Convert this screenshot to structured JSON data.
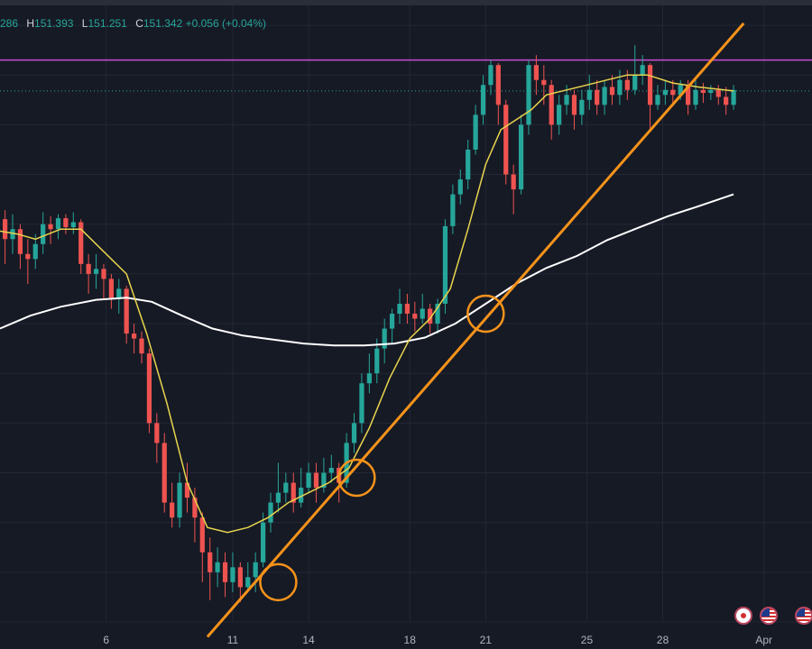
{
  "ohlc": {
    "open_partial": "286",
    "high_label": "H",
    "high": "151.393",
    "low_label": "L",
    "low": "151.251",
    "close_label": "C",
    "close": "151.342",
    "change": "+0.056",
    "change_pct": "(+0.04%)"
  },
  "colors": {
    "background": "#161a25",
    "grid": "#232734",
    "up": "#26a69a",
    "down": "#ef5350",
    "ma_fast": "#e8d44d",
    "ma_slow": "#ffffff",
    "trendline": "#f7931a",
    "resistance": "#c850d0",
    "price_line": "#26a69a",
    "axis_text": "#b2b5be"
  },
  "x_axis": {
    "labels": [
      {
        "text": "6",
        "x": 6
      },
      {
        "text": "11",
        "x": 11
      },
      {
        "text": "14",
        "x": 14
      },
      {
        "text": "18",
        "x": 18
      },
      {
        "text": "21",
        "x": 21
      },
      {
        "text": "25",
        "x": 25
      },
      {
        "text": "28",
        "x": 28
      },
      {
        "text": "Apr",
        "x": 32
      }
    ]
  },
  "event_flags": [
    {
      "type": "jp",
      "icon": "japan-flag-icon"
    },
    {
      "type": "us",
      "icon": "us-flag-icon"
    },
    {
      "type": "us",
      "icon": "us-flag-icon"
    }
  ],
  "chart_data": {
    "type": "candlestick",
    "xlim": [
      1.8,
      33.9
    ],
    "ylim": [
      146.0,
      152.2
    ],
    "resistance_level": 151.65,
    "last_price": 151.34,
    "candles": [
      [
        2.0,
        150.05,
        149.85,
        150.14,
        149.6
      ],
      [
        2.3,
        149.85,
        149.95,
        150.1,
        149.7
      ],
      [
        2.6,
        149.95,
        149.7,
        150.0,
        149.55
      ],
      [
        2.9,
        149.7,
        149.65,
        149.85,
        149.4
      ],
      [
        3.2,
        149.65,
        149.8,
        149.9,
        149.55
      ],
      [
        3.5,
        149.8,
        150.0,
        150.12,
        149.7
      ],
      [
        3.8,
        150.0,
        149.95,
        150.08,
        149.8
      ],
      [
        4.1,
        149.95,
        150.06,
        150.1,
        149.85
      ],
      [
        4.4,
        150.06,
        149.97,
        150.1,
        149.9
      ],
      [
        4.7,
        149.97,
        150.02,
        150.12,
        149.9
      ],
      [
        5.0,
        150.02,
        149.6,
        150.05,
        149.5
      ],
      [
        5.3,
        149.6,
        149.5,
        149.7,
        149.3
      ],
      [
        5.6,
        149.5,
        149.55,
        149.7,
        149.35
      ],
      [
        5.9,
        149.55,
        149.45,
        149.6,
        149.25
      ],
      [
        6.2,
        149.45,
        149.25,
        149.5,
        149.15
      ],
      [
        6.5,
        149.25,
        149.35,
        149.45,
        149.1
      ],
      [
        6.8,
        149.35,
        148.9,
        149.38,
        148.8
      ],
      [
        7.1,
        148.9,
        148.85,
        149.0,
        148.7
      ],
      [
        7.4,
        148.85,
        148.7,
        148.92,
        148.6
      ],
      [
        7.7,
        148.7,
        148.0,
        148.75,
        147.9
      ],
      [
        8.0,
        148.0,
        147.8,
        148.1,
        147.6
      ],
      [
        8.3,
        147.8,
        147.2,
        147.9,
        147.1
      ],
      [
        8.6,
        147.2,
        147.05,
        147.4,
        146.95
      ],
      [
        8.9,
        147.05,
        147.4,
        147.5,
        146.95
      ],
      [
        9.2,
        147.4,
        147.25,
        147.6,
        147.1
      ],
      [
        9.5,
        147.25,
        147.05,
        147.35,
        146.8
      ],
      [
        9.8,
        147.05,
        146.7,
        147.1,
        146.4
      ],
      [
        10.1,
        146.7,
        146.5,
        146.85,
        146.22
      ],
      [
        10.4,
        146.5,
        146.6,
        146.75,
        146.35
      ],
      [
        10.7,
        146.6,
        146.4,
        146.7,
        146.25
      ],
      [
        11.0,
        146.4,
        146.55,
        146.7,
        146.3
      ],
      [
        11.3,
        146.55,
        146.35,
        146.6,
        146.2
      ],
      [
        11.6,
        146.35,
        146.45,
        146.6,
        146.3
      ],
      [
        11.9,
        146.45,
        146.6,
        146.7,
        146.3
      ],
      [
        12.2,
        146.6,
        147.0,
        147.1,
        146.55
      ],
      [
        12.5,
        147.0,
        147.2,
        147.3,
        146.9
      ],
      [
        12.8,
        147.2,
        147.3,
        147.6,
        147.1
      ],
      [
        13.1,
        147.3,
        147.4,
        147.5,
        147.2
      ],
      [
        13.4,
        147.4,
        147.2,
        147.5,
        147.1
      ],
      [
        13.7,
        147.2,
        147.35,
        147.55,
        147.15
      ],
      [
        14.0,
        147.35,
        147.5,
        147.6,
        147.3
      ],
      [
        14.3,
        147.5,
        147.35,
        147.6,
        147.2
      ],
      [
        14.6,
        147.35,
        147.5,
        147.65,
        147.3
      ],
      [
        14.9,
        147.5,
        147.55,
        147.68,
        147.4
      ],
      [
        15.2,
        147.55,
        147.4,
        147.6,
        147.2
      ],
      [
        15.5,
        147.4,
        147.8,
        147.9,
        147.35
      ],
      [
        15.8,
        147.8,
        148.0,
        148.1,
        147.7
      ],
      [
        16.1,
        148.0,
        148.4,
        148.5,
        147.9
      ],
      [
        16.4,
        148.4,
        148.5,
        148.7,
        148.3
      ],
      [
        16.7,
        148.5,
        148.75,
        148.85,
        148.4
      ],
      [
        17.0,
        148.75,
        148.95,
        149.05,
        148.6
      ],
      [
        17.3,
        148.95,
        149.1,
        149.15,
        148.8
      ],
      [
        17.6,
        149.1,
        149.2,
        149.35,
        149.0
      ],
      [
        17.9,
        149.2,
        149.1,
        149.3,
        149.0
      ],
      [
        18.2,
        149.1,
        149.05,
        149.22,
        148.92
      ],
      [
        18.5,
        149.05,
        149.15,
        149.3,
        149.0
      ],
      [
        18.8,
        149.15,
        149.0,
        149.2,
        148.9
      ],
      [
        19.1,
        149.0,
        149.2,
        149.25,
        148.9
      ],
      [
        19.4,
        149.2,
        149.98,
        150.05,
        149.1
      ],
      [
        19.7,
        149.98,
        150.3,
        150.4,
        149.9
      ],
      [
        20.0,
        150.3,
        150.45,
        150.55,
        150.2
      ],
      [
        20.3,
        150.45,
        150.75,
        150.85,
        150.35
      ],
      [
        20.6,
        150.75,
        151.1,
        151.2,
        150.7
      ],
      [
        20.9,
        151.1,
        151.4,
        151.5,
        151.0
      ],
      [
        21.2,
        151.4,
        151.6,
        151.65,
        151.3
      ],
      [
        21.5,
        151.6,
        151.2,
        151.62,
        151.0
      ],
      [
        21.8,
        151.2,
        150.5,
        151.25,
        150.4
      ],
      [
        22.1,
        150.5,
        150.35,
        150.6,
        150.1
      ],
      [
        22.4,
        150.35,
        151.0,
        151.1,
        150.3
      ],
      [
        22.7,
        151.0,
        151.6,
        151.65,
        150.9
      ],
      [
        23.0,
        151.6,
        151.45,
        151.7,
        151.3
      ],
      [
        23.3,
        151.45,
        151.4,
        151.6,
        151.2
      ],
      [
        23.6,
        151.4,
        151.0,
        151.45,
        150.85
      ],
      [
        23.9,
        151.0,
        151.2,
        151.3,
        150.9
      ],
      [
        24.2,
        151.2,
        151.3,
        151.4,
        151.1
      ],
      [
        24.5,
        151.3,
        151.1,
        151.35,
        150.95
      ],
      [
        24.8,
        151.1,
        151.25,
        151.35,
        151.0
      ],
      [
        25.1,
        151.25,
        151.35,
        151.5,
        151.15
      ],
      [
        25.4,
        151.35,
        151.2,
        151.45,
        151.1
      ],
      [
        25.7,
        151.2,
        151.38,
        151.45,
        151.1
      ],
      [
        26.0,
        151.38,
        151.3,
        151.5,
        151.2
      ],
      [
        26.3,
        151.3,
        151.45,
        151.55,
        151.2
      ],
      [
        26.6,
        151.45,
        151.35,
        151.55,
        151.25
      ],
      [
        26.9,
        151.35,
        151.5,
        151.8,
        151.3
      ],
      [
        27.2,
        151.5,
        151.6,
        151.7,
        151.4
      ],
      [
        27.5,
        151.6,
        151.2,
        151.62,
        150.95
      ],
      [
        27.8,
        151.2,
        151.3,
        151.4,
        151.15
      ],
      [
        28.1,
        151.3,
        151.35,
        151.45,
        151.2
      ],
      [
        28.4,
        151.35,
        151.3,
        151.45,
        151.2
      ],
      [
        28.7,
        151.3,
        151.4,
        151.45,
        151.25
      ],
      [
        29.0,
        151.4,
        151.2,
        151.45,
        151.1
      ],
      [
        29.3,
        151.2,
        151.35,
        151.45,
        151.15
      ],
      [
        29.6,
        151.35,
        151.32,
        151.42,
        151.22
      ],
      [
        29.9,
        151.32,
        151.35,
        151.4,
        151.25
      ],
      [
        30.2,
        151.35,
        151.28,
        151.4,
        151.2
      ],
      [
        30.5,
        151.28,
        151.2,
        151.38,
        151.1
      ],
      [
        30.8,
        151.2,
        151.35,
        151.4,
        151.15
      ]
    ],
    "ma_fast": [
      [
        1.8,
        149.93
      ],
      [
        2.5,
        149.9
      ],
      [
        3.2,
        149.85
      ],
      [
        4.2,
        149.95
      ],
      [
        5.0,
        149.95
      ],
      [
        5.8,
        149.75
      ],
      [
        6.8,
        149.5
      ],
      [
        7.6,
        148.9
      ],
      [
        8.4,
        148.2
      ],
      [
        9.2,
        147.4
      ],
      [
        10.0,
        146.95
      ],
      [
        10.8,
        146.9
      ],
      [
        11.6,
        146.95
      ],
      [
        12.4,
        147.05
      ],
      [
        13.2,
        147.2
      ],
      [
        14.0,
        147.3
      ],
      [
        14.8,
        147.4
      ],
      [
        15.6,
        147.55
      ],
      [
        16.4,
        147.95
      ],
      [
        17.2,
        148.45
      ],
      [
        18.0,
        148.85
      ],
      [
        18.8,
        149.05
      ],
      [
        19.6,
        149.35
      ],
      [
        20.3,
        149.95
      ],
      [
        21.0,
        150.6
      ],
      [
        21.6,
        150.95
      ],
      [
        22.2,
        151.05
      ],
      [
        22.8,
        151.15
      ],
      [
        23.4,
        151.3
      ],
      [
        24.2,
        151.35
      ],
      [
        25.0,
        151.4
      ],
      [
        25.8,
        151.45
      ],
      [
        26.6,
        151.5
      ],
      [
        27.4,
        151.5
      ],
      [
        28.4,
        151.42
      ],
      [
        29.4,
        151.38
      ],
      [
        30.8,
        151.34
      ]
    ],
    "ma_slow": [
      [
        1.8,
        148.95
      ],
      [
        3.0,
        149.08
      ],
      [
        4.2,
        149.17
      ],
      [
        5.6,
        149.24
      ],
      [
        6.8,
        149.26
      ],
      [
        7.8,
        149.22
      ],
      [
        9.0,
        149.08
      ],
      [
        10.2,
        148.95
      ],
      [
        11.4,
        148.88
      ],
      [
        12.6,
        148.84
      ],
      [
        13.8,
        148.8
      ],
      [
        15.0,
        148.78
      ],
      [
        16.2,
        148.78
      ],
      [
        17.4,
        148.8
      ],
      [
        18.6,
        148.86
      ],
      [
        19.8,
        149.0
      ],
      [
        21.0,
        149.2
      ],
      [
        22.2,
        149.4
      ],
      [
        23.4,
        149.56
      ],
      [
        24.6,
        149.68
      ],
      [
        25.8,
        149.84
      ],
      [
        27.0,
        149.96
      ],
      [
        28.2,
        150.08
      ],
      [
        29.4,
        150.18
      ],
      [
        30.8,
        150.3
      ]
    ],
    "trendline": {
      "from": [
        10.0,
        145.85
      ],
      "to": [
        31.2,
        152.02
      ]
    },
    "touch_points": [
      [
        12.8,
        146.4
      ],
      [
        15.9,
        147.45
      ],
      [
        21.0,
        149.1
      ]
    ]
  }
}
